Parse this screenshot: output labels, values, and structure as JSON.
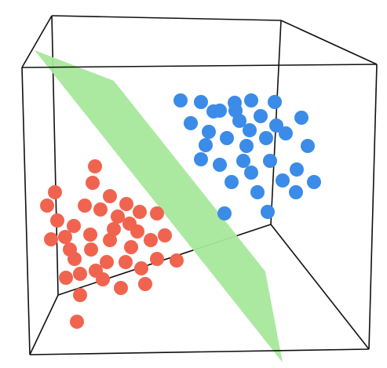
{
  "diagram": {
    "colors": {
      "class_a": "#3b8be8",
      "class_b": "#f0644f",
      "hyperplane": "#a7e89c",
      "box_edges": "#111111",
      "background": "#ffffff"
    },
    "classes": [
      {
        "key": "class_a",
        "count": 34
      },
      {
        "key": "class_b",
        "count": 39
      }
    ]
  }
}
